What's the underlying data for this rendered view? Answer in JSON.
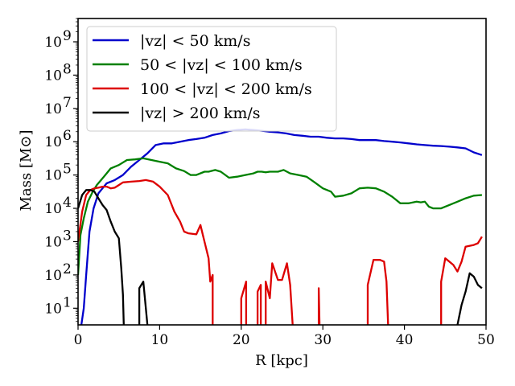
{
  "chart_data": {
    "type": "line",
    "title": "",
    "xlabel": "R [kpc]",
    "ylabel": "Mass [M⊙]",
    "y_scale": "log",
    "xlim": [
      0,
      50
    ],
    "ylim_log10": [
      0.5,
      9.7
    ],
    "x_ticks": [
      0,
      10,
      20,
      30,
      40,
      50
    ],
    "y_ticks_log10": [
      1,
      2,
      3,
      4,
      5,
      6,
      7,
      8,
      9
    ],
    "y_tick_labels": [
      "10",
      "10",
      "10",
      "10",
      "10",
      "10",
      "10",
      "10",
      "10"
    ],
    "y_tick_exponents": [
      "1",
      "2",
      "3",
      "4",
      "5",
      "6",
      "7",
      "8",
      "9"
    ],
    "legend_position": "upper-left",
    "series": [
      {
        "name": "|vz| < 50 km/s",
        "color": "#0000cc",
        "points": [
          [
            0.4,
            0.5
          ],
          [
            0.7,
            1.0
          ],
          [
            1.0,
            2.0
          ],
          [
            1.4,
            3.3
          ],
          [
            1.9,
            4.0
          ],
          [
            2.5,
            4.45
          ],
          [
            3.0,
            4.6
          ],
          [
            3.5,
            4.75
          ],
          [
            4.5,
            4.85
          ],
          [
            5.5,
            5.0
          ],
          [
            6.5,
            5.25
          ],
          [
            7.5,
            5.45
          ],
          [
            8.5,
            5.65
          ],
          [
            9.5,
            5.9
          ],
          [
            10.5,
            5.95
          ],
          [
            11.5,
            5.95
          ],
          [
            12.5,
            6.0
          ],
          [
            13.5,
            6.05
          ],
          [
            14.5,
            6.08
          ],
          [
            15.5,
            6.12
          ],
          [
            16.5,
            6.2
          ],
          [
            17.5,
            6.25
          ],
          [
            18.5,
            6.32
          ],
          [
            19.5,
            6.35
          ],
          [
            20.5,
            6.37
          ],
          [
            21.5,
            6.35
          ],
          [
            22.5,
            6.33
          ],
          [
            23.5,
            6.3
          ],
          [
            24.5,
            6.28
          ],
          [
            25.5,
            6.25
          ],
          [
            26.5,
            6.2
          ],
          [
            27.5,
            6.18
          ],
          [
            28.5,
            6.15
          ],
          [
            29.5,
            6.15
          ],
          [
            30.5,
            6.12
          ],
          [
            31.5,
            6.1
          ],
          [
            32.5,
            6.1
          ],
          [
            33.5,
            6.08
          ],
          [
            34.5,
            6.05
          ],
          [
            35.5,
            6.05
          ],
          [
            36.5,
            6.05
          ],
          [
            37.5,
            6.02
          ],
          [
            38.5,
            6.0
          ],
          [
            39.5,
            5.98
          ],
          [
            40.5,
            5.95
          ],
          [
            41.5,
            5.92
          ],
          [
            42.5,
            5.9
          ],
          [
            43.5,
            5.88
          ],
          [
            44.5,
            5.87
          ],
          [
            45.5,
            5.85
          ],
          [
            46.5,
            5.83
          ],
          [
            47.5,
            5.8
          ],
          [
            48.5,
            5.68
          ],
          [
            49.5,
            5.6
          ]
        ]
      },
      {
        "name": "50 < |vz| < 100 km/s",
        "color": "#008000",
        "points": [
          [
            0.0,
            2.0
          ],
          [
            0.3,
            3.2
          ],
          [
            0.7,
            3.7
          ],
          [
            1.2,
            4.2
          ],
          [
            1.8,
            4.5
          ],
          [
            2.3,
            4.7
          ],
          [
            3.0,
            4.9
          ],
          [
            3.5,
            5.05
          ],
          [
            4.0,
            5.2
          ],
          [
            5.0,
            5.3
          ],
          [
            6.0,
            5.45
          ],
          [
            7.0,
            5.47
          ],
          [
            8.0,
            5.5
          ],
          [
            9.0,
            5.45
          ],
          [
            10.0,
            5.4
          ],
          [
            11.0,
            5.35
          ],
          [
            12.0,
            5.2
          ],
          [
            13.0,
            5.12
          ],
          [
            13.8,
            5.0
          ],
          [
            14.5,
            5.0
          ],
          [
            15.5,
            5.1
          ],
          [
            16.0,
            5.1
          ],
          [
            16.8,
            5.15
          ],
          [
            17.5,
            5.1
          ],
          [
            18.5,
            4.92
          ],
          [
            19.5,
            4.95
          ],
          [
            20.5,
            5.0
          ],
          [
            21.5,
            5.05
          ],
          [
            22.0,
            5.1
          ],
          [
            22.5,
            5.1
          ],
          [
            23.0,
            5.08
          ],
          [
            23.5,
            5.1
          ],
          [
            24.5,
            5.1
          ],
          [
            25.2,
            5.15
          ],
          [
            26.0,
            5.05
          ],
          [
            27.0,
            5.0
          ],
          [
            28.0,
            4.95
          ],
          [
            29.0,
            4.78
          ],
          [
            30.0,
            4.6
          ],
          [
            31.0,
            4.5
          ],
          [
            31.5,
            4.35
          ],
          [
            32.5,
            4.38
          ],
          [
            33.5,
            4.45
          ],
          [
            34.5,
            4.6
          ],
          [
            35.5,
            4.62
          ],
          [
            36.5,
            4.6
          ],
          [
            37.5,
            4.5
          ],
          [
            38.5,
            4.35
          ],
          [
            39.5,
            4.15
          ],
          [
            40.5,
            4.15
          ],
          [
            41.5,
            4.2
          ],
          [
            42.0,
            4.18
          ],
          [
            42.5,
            4.2
          ],
          [
            43.0,
            4.05
          ],
          [
            43.5,
            4.0
          ],
          [
            44.5,
            4.0
          ],
          [
            45.5,
            4.1
          ],
          [
            46.5,
            4.2
          ],
          [
            47.5,
            4.3
          ],
          [
            48.5,
            4.38
          ],
          [
            49.5,
            4.4
          ]
        ]
      },
      {
        "name": "100 < |vz| < 200 km/s",
        "color": "#dd0000",
        "points": [
          [
            0.0,
            3.0
          ],
          [
            0.5,
            3.9
          ],
          [
            1.0,
            4.4
          ],
          [
            1.5,
            4.55
          ],
          [
            2.0,
            4.6
          ],
          [
            2.5,
            4.62
          ],
          [
            3.0,
            4.65
          ],
          [
            3.5,
            4.65
          ],
          [
            4.0,
            4.6
          ],
          [
            4.5,
            4.62
          ],
          [
            5.0,
            4.7
          ],
          [
            5.5,
            4.78
          ],
          [
            6.5,
            4.8
          ],
          [
            7.5,
            4.82
          ],
          [
            8.3,
            4.85
          ],
          [
            9.2,
            4.8
          ],
          [
            10.0,
            4.65
          ],
          [
            11.0,
            4.4
          ],
          [
            11.8,
            3.9
          ],
          [
            12.5,
            3.6
          ],
          [
            13.0,
            3.3
          ],
          [
            13.5,
            3.25
          ],
          [
            14.5,
            3.22
          ],
          [
            15.0,
            3.5
          ],
          [
            15.3,
            3.2
          ],
          [
            16.0,
            2.5
          ],
          [
            16.2,
            1.8
          ],
          [
            16.5,
            2.0
          ],
          [
            16.5,
            0.5
          ]
        ]
      },
      {
        "name": "|vz| > 200 km/s",
        "color": "#000000",
        "points": [
          [
            0.0,
            4.0
          ],
          [
            0.5,
            4.4
          ],
          [
            1.0,
            4.55
          ],
          [
            1.5,
            4.55
          ],
          [
            2.0,
            4.5
          ],
          [
            2.5,
            4.3
          ],
          [
            3.0,
            4.1
          ],
          [
            3.5,
            3.95
          ],
          [
            4.0,
            3.6
          ],
          [
            4.5,
            3.3
          ],
          [
            5.0,
            3.1
          ],
          [
            5.3,
            2.2
          ],
          [
            5.5,
            1.4
          ],
          [
            5.6,
            0.5
          ]
        ]
      }
    ],
    "extra_segments": [
      {
        "series": 2,
        "points": [
          [
            20.0,
            0.5
          ],
          [
            20.0,
            1.3
          ],
          [
            20.6,
            1.8
          ],
          [
            20.6,
            0.5
          ]
        ]
      },
      {
        "series": 2,
        "points": [
          [
            22.0,
            0.5
          ],
          [
            22.0,
            1.5
          ],
          [
            22.4,
            1.7
          ],
          [
            22.4,
            0.5
          ]
        ]
      },
      {
        "series": 2,
        "points": [
          [
            23.0,
            0.5
          ],
          [
            23.0,
            1.8
          ],
          [
            23.5,
            1.3
          ],
          [
            23.8,
            2.35
          ],
          [
            24.5,
            1.85
          ],
          [
            25.0,
            1.85
          ],
          [
            25.6,
            2.35
          ],
          [
            26.0,
            1.7
          ],
          [
            26.3,
            0.5
          ]
        ]
      },
      {
        "series": 2,
        "points": [
          [
            29.5,
            0.5
          ],
          [
            29.5,
            1.6
          ],
          [
            29.6,
            0.5
          ]
        ]
      },
      {
        "series": 2,
        "points": [
          [
            35.5,
            0.5
          ],
          [
            35.5,
            1.7
          ],
          [
            36.2,
            2.45
          ],
          [
            37.0,
            2.45
          ],
          [
            37.5,
            2.4
          ],
          [
            37.8,
            1.8
          ],
          [
            38.0,
            0.5
          ]
        ]
      },
      {
        "series": 2,
        "points": [
          [
            44.5,
            0.5
          ],
          [
            44.5,
            1.8
          ],
          [
            45.0,
            2.5
          ],
          [
            45.5,
            2.4
          ],
          [
            46.0,
            2.3
          ],
          [
            46.5,
            2.1
          ],
          [
            47.0,
            2.4
          ],
          [
            47.5,
            2.85
          ],
          [
            48.5,
            2.9
          ],
          [
            49.0,
            2.95
          ],
          [
            49.5,
            3.15
          ]
        ]
      },
      {
        "series": 3,
        "points": [
          [
            7.5,
            0.5
          ],
          [
            7.5,
            1.6
          ],
          [
            8.0,
            1.8
          ],
          [
            8.5,
            0.5
          ]
        ]
      },
      {
        "series": 3,
        "points": [
          [
            46.5,
            0.5
          ],
          [
            47.0,
            1.1
          ],
          [
            47.5,
            1.5
          ],
          [
            48.0,
            2.05
          ],
          [
            48.5,
            1.95
          ],
          [
            49.0,
            1.7
          ],
          [
            49.5,
            1.6
          ]
        ]
      }
    ]
  }
}
